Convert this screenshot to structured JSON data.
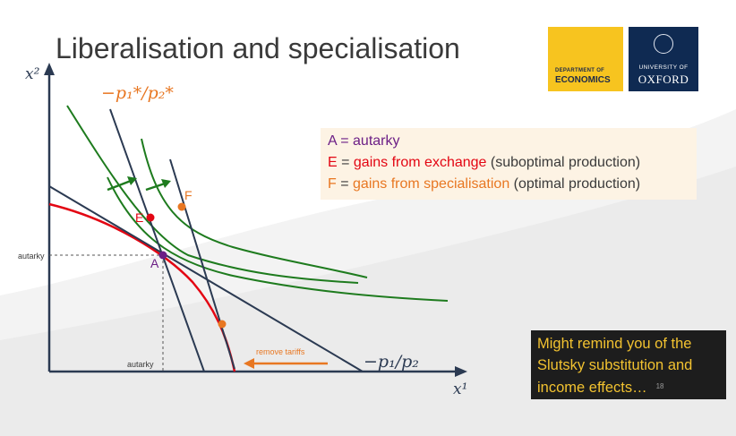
{
  "slide": {
    "title": "Liberalisation and specialisation",
    "page_number": "18"
  },
  "logos": {
    "economics": {
      "line1": "DEPARTMENT OF",
      "line2": "ECONOMICS"
    },
    "oxford": {
      "line1": "UNIVERSITY OF",
      "line2": "OXFORD"
    }
  },
  "legend": {
    "a": {
      "symbol": "A",
      "eq": " = ",
      "text": "autarky"
    },
    "e": {
      "symbol": "E",
      "eq": " = ",
      "text": "gains from exchange",
      "note": " (suboptimal production)"
    },
    "f": {
      "symbol": "F",
      "eq": " = ",
      "text": "gains from specialisation",
      "note": " (optimal production)"
    }
  },
  "diagram": {
    "y_axis_label": "x²",
    "x_axis_label": "x¹",
    "world_price_label": "−p₁*/p₂*",
    "domestic_price_label": "−p₁/p₂",
    "autarky_y_label": "autarky",
    "autarky_x_label": "autarky",
    "point_a": "A",
    "point_e": "E",
    "point_f": "F",
    "arrow_label": "remove tariffs"
  },
  "note": {
    "line1": "Might remind you of the",
    "line2": "Slutsky substitution and",
    "line3": "income effects…"
  },
  "colors": {
    "green": "#1e7b1e",
    "red": "#e30613",
    "orange": "#e87722",
    "purple": "#6c1f86",
    "navy": "#2b3a52"
  }
}
